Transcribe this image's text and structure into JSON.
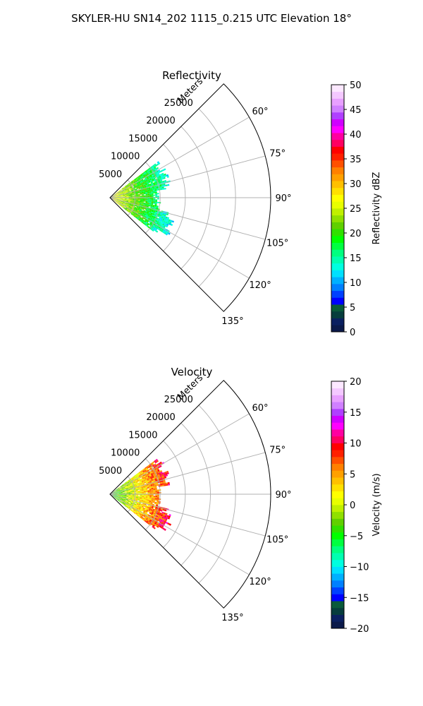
{
  "figure": {
    "title": "SKYLER-HU  SN14_202  1115_0.215 UTC Elevation 18°"
  },
  "chart_data": [
    {
      "type": "heatmap",
      "projection": "polar-sector",
      "title": "Reflectivity",
      "theta_range_deg": [
        45,
        135
      ],
      "theta_ticks_deg": [
        60,
        75,
        90,
        105,
        120,
        135
      ],
      "theta_tick_labels": [
        "60°",
        "75°",
        "90°",
        "105°",
        "120°",
        "135°"
      ],
      "r_range_m": [
        0,
        32000
      ],
      "r_ticks_m": [
        5000,
        10000,
        15000,
        20000,
        25000
      ],
      "r_tick_labels": [
        "5000",
        "10000",
        "15000",
        "20000",
        "25000"
      ],
      "r_axis_label": "Meters",
      "grid": true,
      "colorbar": {
        "label": "Reflectivity dBZ",
        "range": [
          0,
          50
        ],
        "ticks": [
          0,
          5,
          10,
          15,
          20,
          25,
          30,
          35,
          40,
          45,
          50
        ],
        "tick_labels": [
          "0",
          "5",
          "10",
          "15",
          "20",
          "25",
          "30",
          "35",
          "40",
          "45",
          "50"
        ],
        "colors": [
          "#0b1a4a",
          "#0b2060",
          "#073d3d",
          "#0a5a3a",
          "#0000ff",
          "#0040ff",
          "#0080ff",
          "#00b0ff",
          "#00e0ff",
          "#00ffe0",
          "#00ffb0",
          "#00ff80",
          "#00ff40",
          "#00ff00",
          "#30e000",
          "#60d000",
          "#90e000",
          "#c0f000",
          "#e8ff00",
          "#ffff00",
          "#ffe000",
          "#ffc000",
          "#ffa000",
          "#ff8000",
          "#ff5000",
          "#ff2000",
          "#ff0000",
          "#ff0060",
          "#ff00a0",
          "#ff00ff",
          "#d000ff",
          "#b040ff",
          "#d080ff",
          "#e8a0ff",
          "#f4c8ff",
          "#fce8ff"
        ]
      },
      "field": {
        "azimuth_range_deg": [
          53,
          127
        ],
        "max_range_m": 11500,
        "near_value": 27,
        "far_value": 14,
        "notch_center_deg": 92,
        "notch_range_m": 9500
      }
    },
    {
      "type": "heatmap",
      "projection": "polar-sector",
      "title": "Velocity",
      "theta_range_deg": [
        45,
        135
      ],
      "theta_ticks_deg": [
        60,
        75,
        90,
        105,
        120,
        135
      ],
      "theta_tick_labels": [
        "60°",
        "75°",
        "90°",
        "105°",
        "120°",
        "135°"
      ],
      "r_range_m": [
        0,
        32000
      ],
      "r_ticks_m": [
        5000,
        10000,
        15000,
        20000,
        25000
      ],
      "r_tick_labels": [
        "5000",
        "10000",
        "15000",
        "20000",
        "25000"
      ],
      "r_axis_label": "Meters",
      "grid": true,
      "colorbar": {
        "label": "Velocity (m/s)",
        "range": [
          -20,
          20
        ],
        "ticks": [
          -20,
          -15,
          -10,
          -5,
          0,
          5,
          10,
          15,
          20
        ],
        "tick_labels": [
          "−20",
          "−15",
          "−10",
          "−5",
          "0",
          "5",
          "10",
          "15",
          "20"
        ],
        "colors": [
          "#0b1a4a",
          "#0b2060",
          "#073d3d",
          "#0a5a3a",
          "#0000ff",
          "#0040ff",
          "#0080ff",
          "#00b0ff",
          "#00e0ff",
          "#00ffe0",
          "#00ffb0",
          "#00ff80",
          "#00ff40",
          "#00ff00",
          "#30e000",
          "#60d000",
          "#90e000",
          "#c0f000",
          "#e8ff00",
          "#ffff00",
          "#ffe000",
          "#ffc000",
          "#ffa000",
          "#ff8000",
          "#ff5000",
          "#ff2000",
          "#ff0000",
          "#ff0060",
          "#ff00a0",
          "#ff00ff",
          "#d000ff",
          "#b040ff",
          "#d080ff",
          "#e8a0ff",
          "#f4c8ff",
          "#fce8ff"
        ]
      },
      "field": {
        "azimuth_range_deg": [
          53,
          127
        ],
        "max_range_m": 11500,
        "near_value": -5,
        "far_value": 9,
        "notch_center_deg": 92,
        "notch_range_m": 9500
      }
    }
  ]
}
